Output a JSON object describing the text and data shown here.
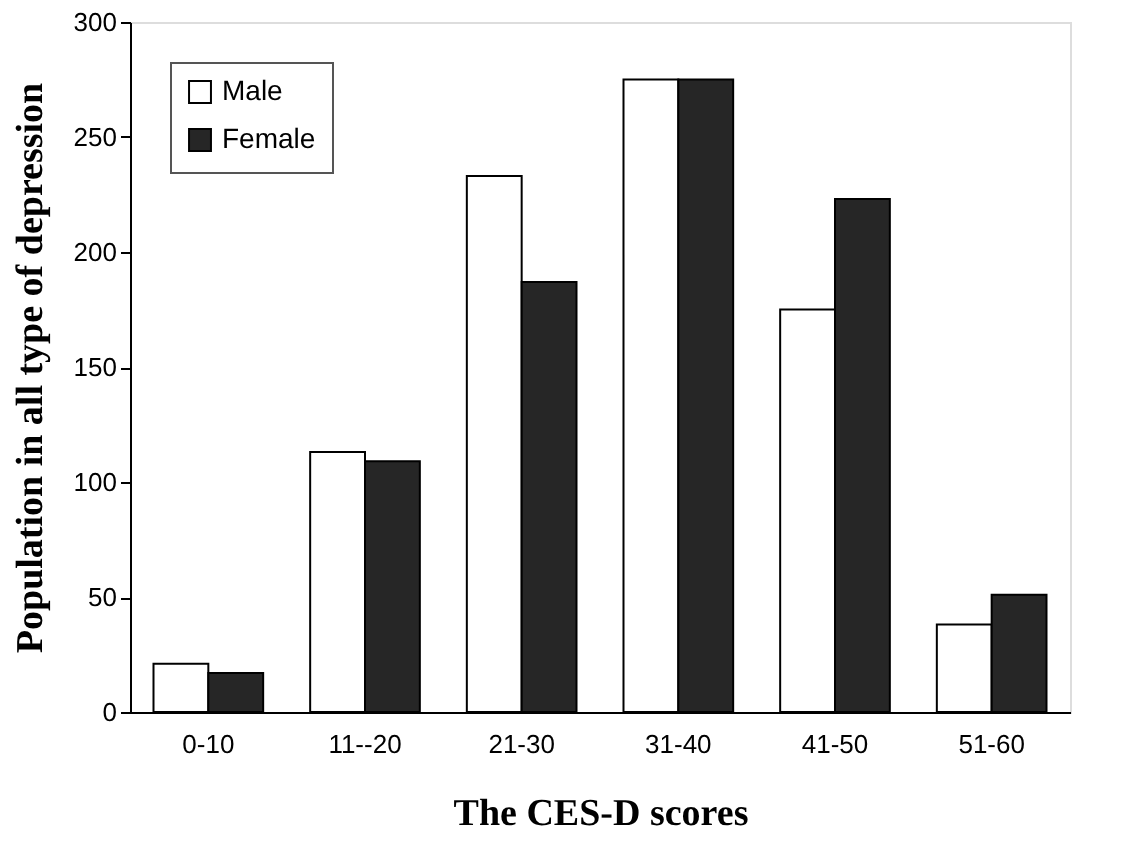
{
  "chart_data": {
    "type": "bar",
    "xlabel": "The CES-D scores",
    "ylabel": "Population in all type of depression",
    "categories": [
      "0-10",
      "11--20",
      "21-30",
      "31-40",
      "41-50",
      "51-60"
    ],
    "series": [
      {
        "name": "Male",
        "color": "#ffffff",
        "values": [
          21,
          113,
          233,
          275,
          175,
          38
        ]
      },
      {
        "name": "Female",
        "color": "#262626",
        "values": [
          17,
          109,
          187,
          275,
          223,
          51
        ]
      }
    ],
    "ylim": [
      0,
      300
    ],
    "yticks": [
      0,
      50,
      100,
      150,
      200,
      250,
      300
    ],
    "grid": false,
    "legend": "top left"
  }
}
